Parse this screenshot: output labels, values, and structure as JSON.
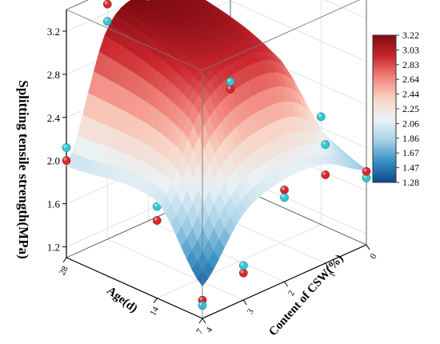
{
  "chart_data": {
    "type": "surface3d",
    "title": "",
    "zlabel": "Splitting tensile strength(MPa)",
    "xlabel": "Age(d)",
    "ylabel": "Content of CSW(%)",
    "z_ticks": [
      "1.2",
      "1.6",
      "2.0",
      "2.4",
      "2.8",
      "3.2"
    ],
    "age_ticks": [
      "28",
      "14",
      "7"
    ],
    "csw_ticks": [
      "0",
      "1",
      "2",
      "3",
      "4"
    ],
    "zlim": [
      1.1,
      3.4
    ],
    "age_range": [
      7,
      28
    ],
    "csw_range": [
      0,
      4
    ],
    "colorbar": {
      "labels": [
        "3.22",
        "3.03",
        "2.83",
        "2.64",
        "2.44",
        "2.25",
        "2.06",
        "1.86",
        "1.67",
        "1.47",
        "1.28"
      ],
      "range": [
        1.28,
        3.22
      ],
      "colors": [
        "#7f0a12",
        "#c9262d",
        "#f1847b",
        "#f9d4c4",
        "#eaf2f6",
        "#a8d2e8",
        "#3a8fc4",
        "#0c4a8c"
      ]
    },
    "surface_grid": {
      "age": [
        7,
        14,
        28
      ],
      "csw": [
        0,
        1,
        2,
        3,
        4
      ],
      "strength": [
        [
          1.8,
          2.02,
          2.05,
          1.9,
          1.4
        ],
        [
          1.95,
          2.8,
          2.95,
          2.75,
          2.0
        ],
        [
          2.0,
          3.05,
          3.22,
          3.05,
          1.95
        ]
      ]
    },
    "series": [
      {
        "name": "",
        "color": "#d8262b",
        "points": [
          {
            "age": 28,
            "csw": 0,
            "strength": 1.98
          },
          {
            "age": 28,
            "csw": 1,
            "strength": 3.12
          },
          {
            "age": 28,
            "csw": 2,
            "strength": 3.3
          },
          {
            "age": 28,
            "csw": 3,
            "strength": 3.28
          },
          {
            "age": 28,
            "csw": 4,
            "strength": 2.0
          },
          {
            "age": 14,
            "csw": 0,
            "strength": 1.85
          },
          {
            "age": 14,
            "csw": 1,
            "strength": 2.02
          },
          {
            "age": 14,
            "csw": 2,
            "strength": 2.62
          },
          {
            "age": 14,
            "csw": 3,
            "strength": 2.28
          },
          {
            "age": 14,
            "csw": 4,
            "strength": 1.82
          },
          {
            "age": 7,
            "csw": 0,
            "strength": 1.78
          },
          {
            "age": 7,
            "csw": 1,
            "strength": 1.92
          },
          {
            "age": 7,
            "csw": 2,
            "strength": 1.95
          },
          {
            "age": 7,
            "csw": 3,
            "strength": 1.35
          },
          {
            "age": 7,
            "csw": 4,
            "strength": 1.27
          }
        ]
      },
      {
        "name": "",
        "color": "#2ec7d2",
        "points": [
          {
            "age": 28,
            "csw": 0,
            "strength": 2.05
          },
          {
            "age": 28,
            "csw": 0,
            "strength": 1.92
          },
          {
            "age": 28,
            "csw": 1,
            "strength": 2.95
          },
          {
            "age": 28,
            "csw": 2,
            "strength": 3.18
          },
          {
            "age": 28,
            "csw": 3,
            "strength": 3.12
          },
          {
            "age": 28,
            "csw": 4,
            "strength": 2.12
          },
          {
            "age": 14,
            "csw": 0,
            "strength": 2.1
          },
          {
            "age": 14,
            "csw": 1,
            "strength": 2.12
          },
          {
            "age": 14,
            "csw": 2,
            "strength": 2.7
          },
          {
            "age": 14,
            "csw": 3,
            "strength": 2.45
          },
          {
            "age": 14,
            "csw": 4,
            "strength": 1.95
          },
          {
            "age": 7,
            "csw": 0,
            "strength": 1.72
          },
          {
            "age": 7,
            "csw": 1,
            "strength": 2.2
          },
          {
            "age": 7,
            "csw": 2,
            "strength": 1.88
          },
          {
            "age": 7,
            "csw": 3,
            "strength": 1.42
          },
          {
            "age": 7,
            "csw": 4,
            "strength": 1.22
          }
        ]
      }
    ]
  }
}
